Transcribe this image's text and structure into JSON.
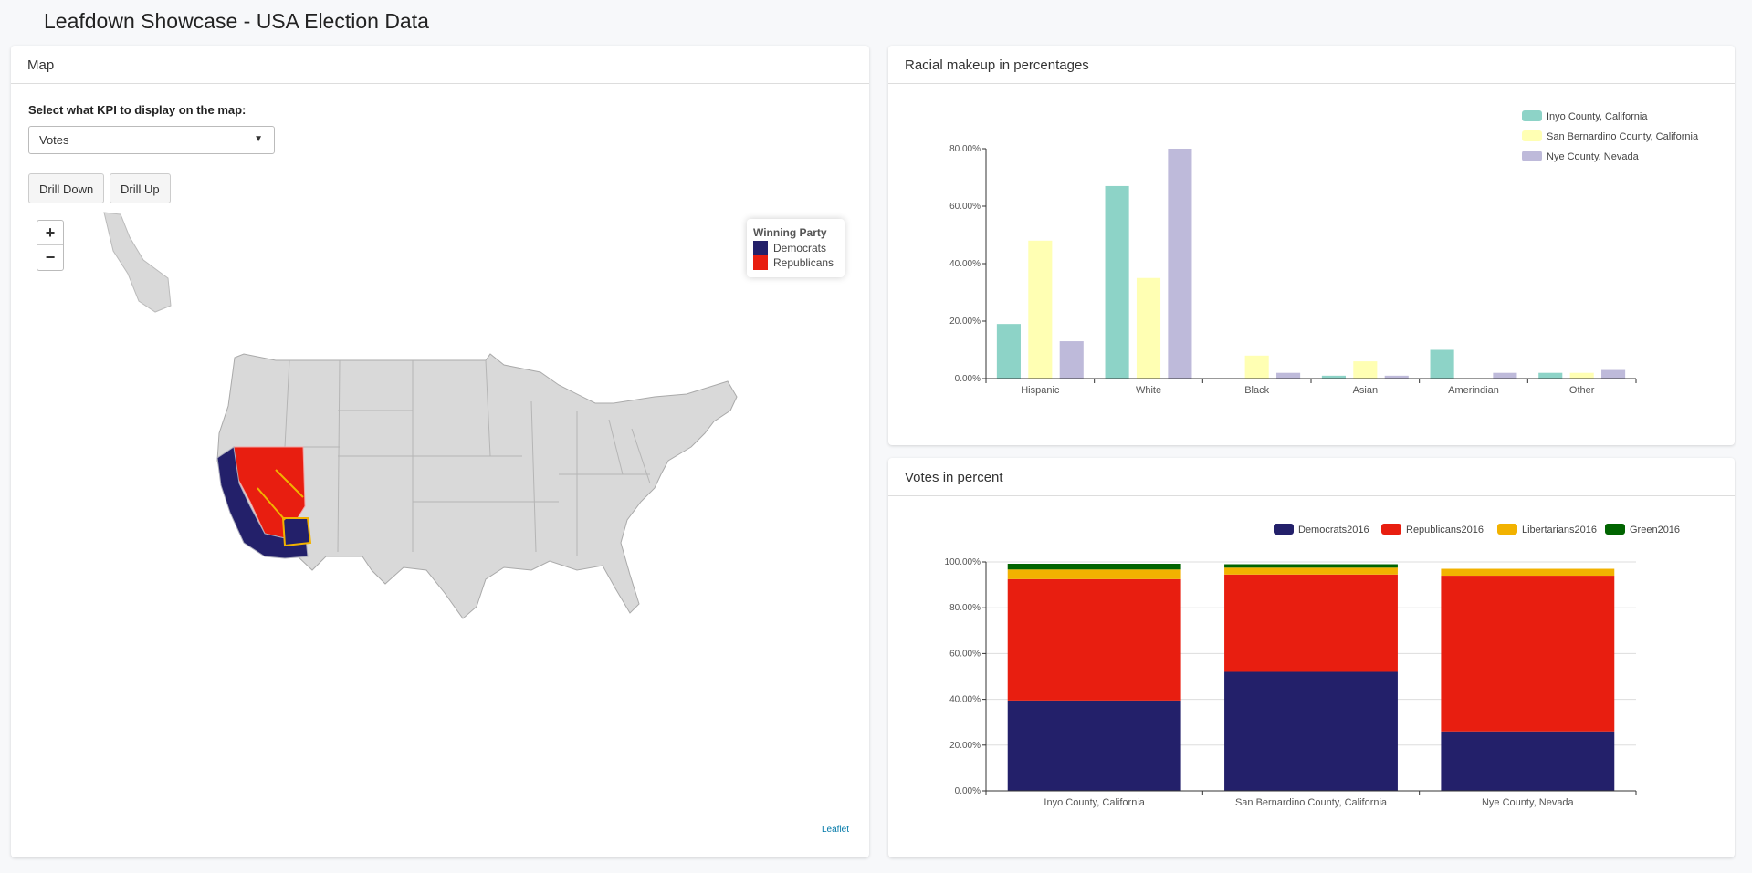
{
  "header": {
    "title": "Leafdown Showcase - USA Election Data"
  },
  "map_panel": {
    "title": "Map",
    "kpi_label": "Select what KPI to display on the map:",
    "kpi_value": "Votes",
    "drill_down": "Drill Down",
    "drill_up": "Drill Up",
    "zoom_in": "+",
    "zoom_out": "−",
    "legend": {
      "title": "Winning Party",
      "items": [
        {
          "label": "Democrats",
          "color": "#23206a"
        },
        {
          "label": "Republicans",
          "color": "#e81e10"
        }
      ]
    },
    "attribution": "Leaflet"
  },
  "racial_panel": {
    "title": "Racial makeup in percentages"
  },
  "votes_panel": {
    "title": "Votes in percent"
  },
  "chart_data": [
    {
      "type": "bar",
      "title": "Racial makeup in percentages",
      "categories": [
        "Hispanic",
        "White",
        "Black",
        "Asian",
        "Amerindian",
        "Other"
      ],
      "yticks": [
        "0.00%",
        "20.00%",
        "40.00%",
        "60.00%",
        "80.00%"
      ],
      "ylim": [
        0,
        80
      ],
      "legend": "top-right",
      "series": [
        {
          "name": "Inyo County, California",
          "color": "#8dd3c7",
          "values": [
            19,
            67,
            0,
            1,
            10,
            2
          ]
        },
        {
          "name": "San Bernardino County, California",
          "color": "#ffffb3",
          "values": [
            48,
            35,
            8,
            6,
            0,
            2
          ]
        },
        {
          "name": "Nye County, Nevada",
          "color": "#bebada",
          "values": [
            13,
            80,
            2,
            1,
            2,
            3
          ]
        }
      ]
    },
    {
      "type": "bar",
      "stacked": true,
      "title": "Votes in percent",
      "categories": [
        "Inyo County, California",
        "San Bernardino County, California",
        "Nye County, Nevada"
      ],
      "yticks": [
        "0.00%",
        "20.00%",
        "40.00%",
        "60.00%",
        "80.00%",
        "100.00%"
      ],
      "ylim": [
        0,
        100
      ],
      "grid": true,
      "legend": "top-right",
      "series": [
        {
          "name": "Democrats2016",
          "color": "#23206a",
          "values": [
            39.5,
            52,
            26
          ]
        },
        {
          "name": "Republicans2016",
          "color": "#e81e10",
          "values": [
            53,
            42.5,
            68
          ]
        },
        {
          "name": "Libertarians2016",
          "color": "#f2b200",
          "values": [
            4.2,
            3,
            3
          ]
        },
        {
          "name": "Green2016",
          "color": "#006400",
          "values": [
            2.5,
            1.5,
            0
          ]
        }
      ]
    }
  ]
}
